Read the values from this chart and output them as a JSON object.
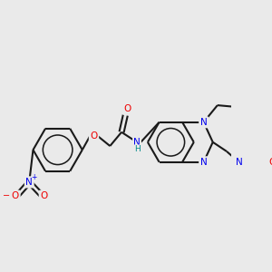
{
  "background_color": "#eaeaea",
  "figsize": [
    3.0,
    3.0
  ],
  "dpi": 100,
  "bond_color": "#1a1a1a",
  "bond_lw": 1.5,
  "atom_colors": {
    "N": "#0000ee",
    "O": "#ee0000",
    "H": "#008888",
    "C": "#1a1a1a"
  },
  "font_size": 7.5,
  "font_size_h": 6.5
}
